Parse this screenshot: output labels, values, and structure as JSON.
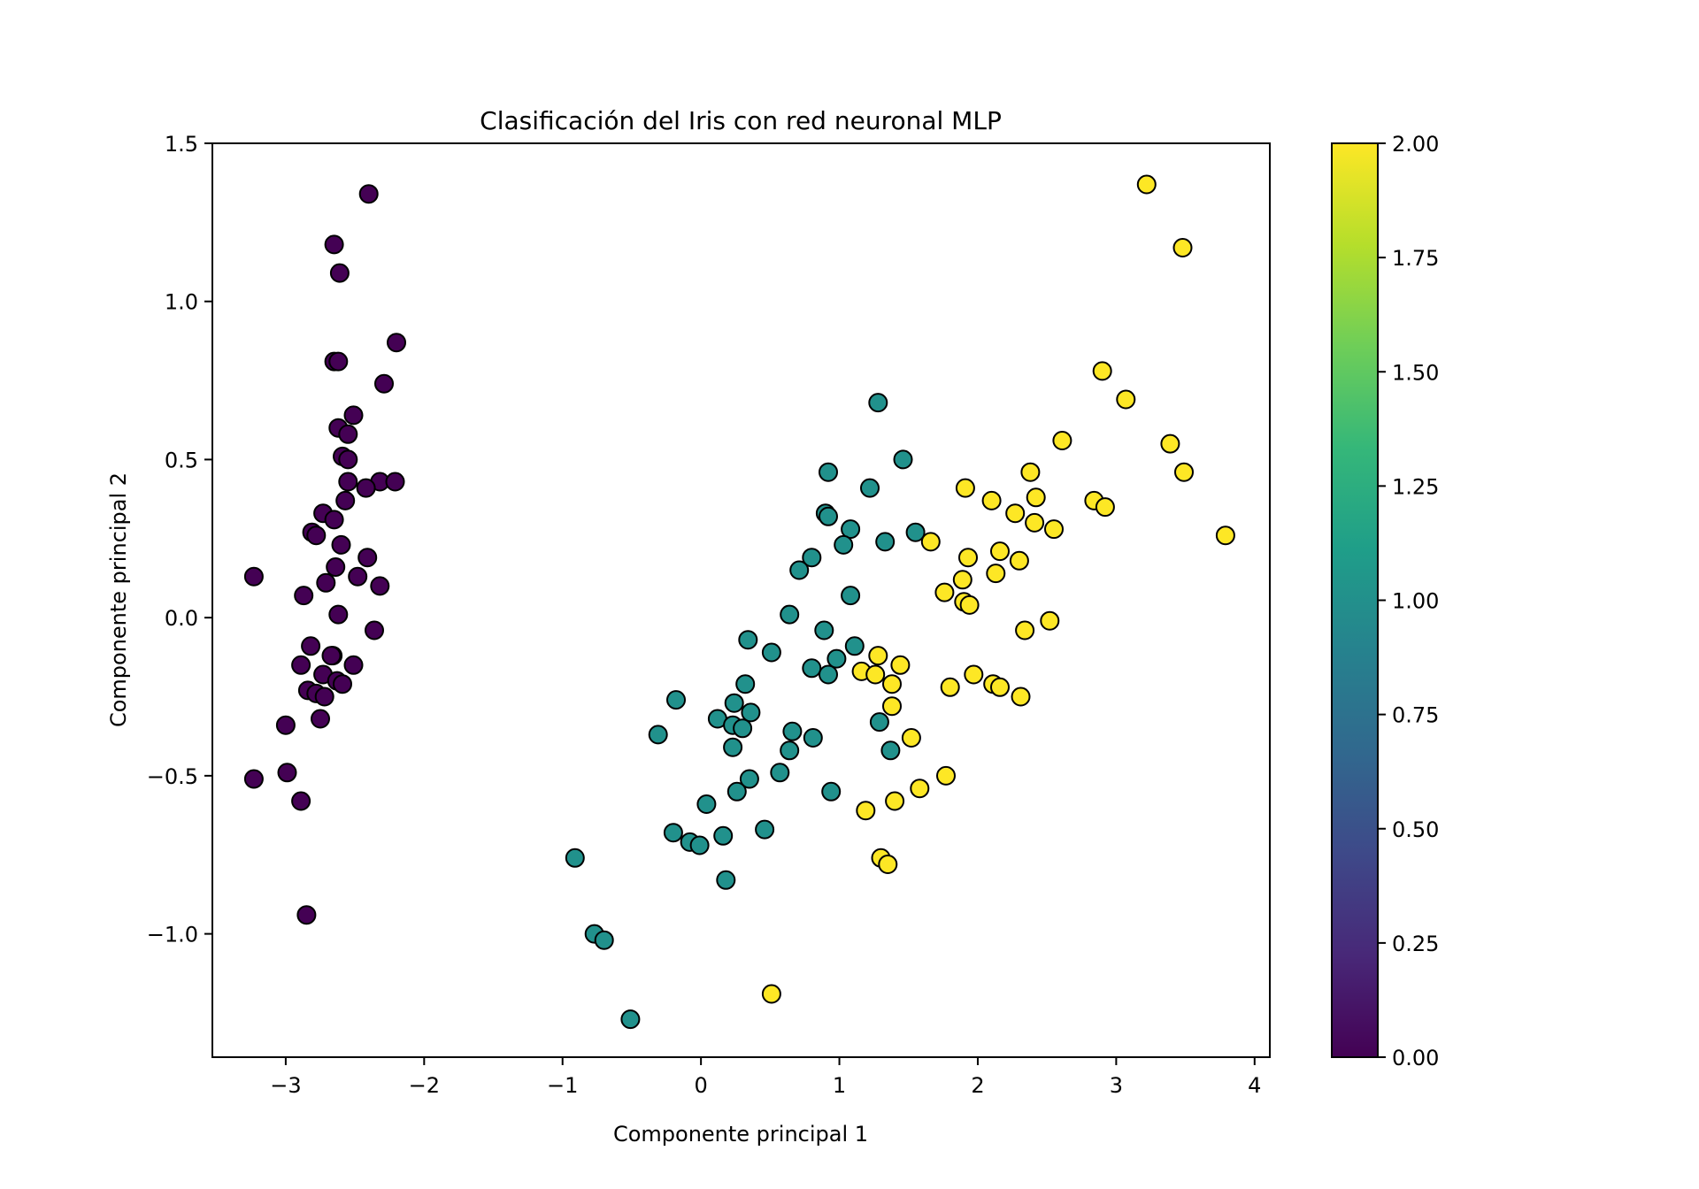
{
  "chart_data": {
    "type": "scatter",
    "title": "Clasificación del Iris con red neuronal MLP",
    "xlabel": "Componente principal 1",
    "ylabel": "Componente principal 2",
    "xlim": [
      -3.53,
      4.11
    ],
    "ylim": [
      -1.39,
      1.5
    ],
    "xticks": [
      -3,
      -2,
      -1,
      0,
      1,
      2,
      3,
      4
    ],
    "xtick_labels": [
      "−3",
      "−2",
      "−1",
      "0",
      "1",
      "2",
      "3",
      "4"
    ],
    "yticks": [
      1.5,
      1.0,
      0.5,
      0.0,
      -0.5,
      -1.0
    ],
    "ytick_labels": [
      "1.5",
      "1.0",
      "0.5",
      "0.0",
      "−0.5",
      "−1.0"
    ],
    "grid": false,
    "colorbar": {
      "cmap": "viridis",
      "range": [
        0,
        2
      ],
      "ticks": [
        2.0,
        1.75,
        1.5,
        1.25,
        1.0,
        0.75,
        0.5,
        0.25,
        0.0
      ],
      "tick_labels": [
        "2.00",
        "1.75",
        "1.50",
        "1.25",
        "1.00",
        "0.75",
        "0.50",
        "0.25",
        "0.00"
      ],
      "stops": [
        "#440154",
        "#482878",
        "#3e4989",
        "#31688e",
        "#26828e",
        "#1f9e89",
        "#35b779",
        "#6ece58",
        "#b5de2b",
        "#fde725"
      ]
    },
    "class_colors": [
      "#440154",
      "#21918c",
      "#fde725"
    ],
    "series": [
      {
        "name": "0",
        "color": "#440154",
        "points": [
          [
            -2.4,
            1.34
          ],
          [
            -2.65,
            1.18
          ],
          [
            -2.61,
            1.09
          ],
          [
            -2.65,
            0.81
          ],
          [
            -2.62,
            0.81
          ],
          [
            -2.2,
            0.87
          ],
          [
            -2.29,
            0.74
          ],
          [
            -2.51,
            0.64
          ],
          [
            -2.62,
            0.6
          ],
          [
            -2.55,
            0.58
          ],
          [
            -2.59,
            0.51
          ],
          [
            -2.55,
            0.5
          ],
          [
            -2.32,
            0.43
          ],
          [
            -2.21,
            0.43
          ],
          [
            -2.42,
            0.41
          ],
          [
            -2.55,
            0.43
          ],
          [
            -2.57,
            0.37
          ],
          [
            -2.73,
            0.33
          ],
          [
            -2.81,
            0.27
          ],
          [
            -2.78,
            0.26
          ],
          [
            -2.65,
            0.31
          ],
          [
            -2.6,
            0.23
          ],
          [
            -2.41,
            0.19
          ],
          [
            -2.64,
            0.16
          ],
          [
            -3.23,
            0.13
          ],
          [
            -2.32,
            0.1
          ],
          [
            -2.48,
            0.13
          ],
          [
            -2.71,
            0.11
          ],
          [
            -2.87,
            0.07
          ],
          [
            -2.62,
            0.01
          ],
          [
            -2.36,
            -0.04
          ],
          [
            -2.82,
            -0.09
          ],
          [
            -2.89,
            -0.15
          ],
          [
            -2.66,
            -0.12
          ],
          [
            -2.67,
            -0.12
          ],
          [
            -2.51,
            -0.15
          ],
          [
            -2.73,
            -0.18
          ],
          [
            -2.63,
            -0.2
          ],
          [
            -2.59,
            -0.21
          ],
          [
            -2.84,
            -0.23
          ],
          [
            -2.78,
            -0.24
          ],
          [
            -2.72,
            -0.25
          ],
          [
            -2.75,
            -0.32
          ],
          [
            -3.0,
            -0.34
          ],
          [
            -3.23,
            -0.51
          ],
          [
            -2.99,
            -0.49
          ],
          [
            -2.89,
            -0.58
          ],
          [
            -2.85,
            -0.94
          ]
        ]
      },
      {
        "name": "1",
        "color": "#21918c",
        "points": [
          [
            1.28,
            0.68
          ],
          [
            1.46,
            0.5
          ],
          [
            0.92,
            0.46
          ],
          [
            1.22,
            0.41
          ],
          [
            0.9,
            0.33
          ],
          [
            0.92,
            0.32
          ],
          [
            1.08,
            0.28
          ],
          [
            1.33,
            0.24
          ],
          [
            1.55,
            0.27
          ],
          [
            1.03,
            0.23
          ],
          [
            0.8,
            0.19
          ],
          [
            0.71,
            0.15
          ],
          [
            1.08,
            0.07
          ],
          [
            0.64,
            0.01
          ],
          [
            0.89,
            -0.04
          ],
          [
            0.34,
            -0.07
          ],
          [
            1.11,
            -0.09
          ],
          [
            0.51,
            -0.11
          ],
          [
            0.98,
            -0.13
          ],
          [
            0.8,
            -0.16
          ],
          [
            0.92,
            -0.18
          ],
          [
            0.32,
            -0.21
          ],
          [
            -0.18,
            -0.26
          ],
          [
            0.24,
            -0.27
          ],
          [
            0.12,
            -0.32
          ],
          [
            0.36,
            -0.3
          ],
          [
            0.23,
            -0.34
          ],
          [
            0.3,
            -0.35
          ],
          [
            0.66,
            -0.36
          ],
          [
            1.29,
            -0.33
          ],
          [
            -0.31,
            -0.37
          ],
          [
            0.81,
            -0.38
          ],
          [
            0.64,
            -0.42
          ],
          [
            0.23,
            -0.41
          ],
          [
            1.37,
            -0.42
          ],
          [
            0.35,
            -0.51
          ],
          [
            0.57,
            -0.49
          ],
          [
            0.94,
            -0.55
          ],
          [
            0.26,
            -0.55
          ],
          [
            0.04,
            -0.59
          ],
          [
            -0.2,
            -0.68
          ],
          [
            0.46,
            -0.67
          ],
          [
            -0.08,
            -0.71
          ],
          [
            -0.01,
            -0.72
          ],
          [
            0.16,
            -0.69
          ],
          [
            -0.91,
            -0.76
          ],
          [
            0.18,
            -0.83
          ],
          [
            -0.77,
            -1.0
          ],
          [
            -0.7,
            -1.02
          ],
          [
            -0.51,
            -1.27
          ]
        ]
      },
      {
        "name": "2",
        "color": "#fde725",
        "points": [
          [
            3.22,
            1.37
          ],
          [
            3.48,
            1.17
          ],
          [
            2.9,
            0.78
          ],
          [
            3.07,
            0.69
          ],
          [
            2.61,
            0.56
          ],
          [
            3.39,
            0.55
          ],
          [
            2.38,
            0.46
          ],
          [
            3.49,
            0.46
          ],
          [
            1.91,
            0.41
          ],
          [
            2.1,
            0.37
          ],
          [
            2.42,
            0.38
          ],
          [
            2.84,
            0.37
          ],
          [
            2.92,
            0.35
          ],
          [
            2.27,
            0.33
          ],
          [
            2.41,
            0.3
          ],
          [
            2.55,
            0.28
          ],
          [
            3.79,
            0.26
          ],
          [
            1.66,
            0.24
          ],
          [
            2.16,
            0.21
          ],
          [
            1.93,
            0.19
          ],
          [
            2.3,
            0.18
          ],
          [
            2.13,
            0.14
          ],
          [
            1.89,
            0.12
          ],
          [
            1.76,
            0.08
          ],
          [
            1.9,
            0.05
          ],
          [
            1.94,
            0.04
          ],
          [
            2.52,
            -0.01
          ],
          [
            2.34,
            -0.04
          ],
          [
            1.28,
            -0.12
          ],
          [
            1.44,
            -0.15
          ],
          [
            1.16,
            -0.17
          ],
          [
            1.26,
            -0.18
          ],
          [
            1.38,
            -0.21
          ],
          [
            1.97,
            -0.18
          ],
          [
            1.8,
            -0.22
          ],
          [
            2.11,
            -0.21
          ],
          [
            2.16,
            -0.22
          ],
          [
            2.31,
            -0.25
          ],
          [
            1.38,
            -0.28
          ],
          [
            1.52,
            -0.38
          ],
          [
            1.77,
            -0.5
          ],
          [
            1.58,
            -0.54
          ],
          [
            1.4,
            -0.58
          ],
          [
            1.19,
            -0.61
          ],
          [
            1.3,
            -0.76
          ],
          [
            1.35,
            -0.78
          ],
          [
            0.51,
            -1.19
          ]
        ]
      }
    ]
  }
}
